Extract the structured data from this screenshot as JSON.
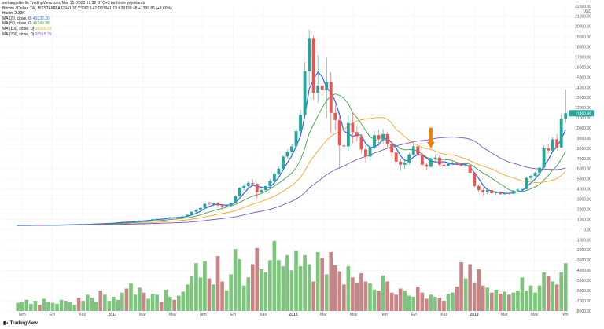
{
  "header": {
    "snapshot": "serkanguliterlin TradingView.com, Mar 15, 2022 17:32 UTC+3 tarihinde yayınlandı",
    "symbol_line": "Bitcoin / Dollar, 1W, BITSTAMP  A37941.37  Y39913.42  D37941.19  K39130.48  +1399.86 (+3.60%)",
    "hacim": "Hacim  2.33K",
    "ma_lines": [
      {
        "label": "MA (20, close, 0)",
        "value": "40332.20",
        "color": "#2962ff"
      },
      {
        "label": "MA (50, close, 0)",
        "value": "46149.88",
        "color": "#43a047"
      },
      {
        "label": "MA (100, close, 0)",
        "value": "35965.51",
        "color": "#f5a623"
      },
      {
        "label": "MA (200, close, 0)",
        "value": "20515.35",
        "color": "#7e57c2"
      }
    ]
  },
  "colors": {
    "up": "#26a69a",
    "down": "#ef5350",
    "up_vol": "#7dc47d",
    "down_vol": "#c98585",
    "arrow": "#f57c00",
    "price_tag": "#26a69a"
  },
  "price_axis": {
    "currency": "USD",
    "top_label": "22000.00",
    "ticks": [
      "21000.00",
      "20000.00",
      "19000.00",
      "18000.00",
      "17000.00",
      "16000.00",
      "15000.00",
      "14000.00",
      "13000.00",
      "12000.00",
      "11000.00",
      "10000.00",
      "9000.00",
      "8000.00",
      "7000.00",
      "6000.00",
      "5000.00",
      "4000.00",
      "3000.00",
      "2000.00",
      "1000.00",
      "0.00",
      "-1000.00",
      "-2000.00",
      "-3000.00",
      "-4000.00",
      "-5000.00",
      "-6000.00",
      "-7000.00",
      "-8000.00"
    ],
    "current_price": "11460.96"
  },
  "time_axis": [
    "Tem",
    "Eyl",
    "Kas",
    "2017",
    "Mar",
    "May",
    "Tem",
    "Eyl",
    "Kas",
    "2018",
    "Mar",
    "May",
    "Tem",
    "Eyl",
    "Kas",
    "2019",
    "Mar",
    "May",
    "Tem"
  ],
  "watermark": "TradingView",
  "chart_data": {
    "type": "candlestick",
    "interval": "1W",
    "ylabel": "USD",
    "ylim": [
      -8000,
      22000
    ],
    "candles": [
      [
        420,
        430,
        410,
        425
      ],
      [
        425,
        435,
        415,
        428
      ],
      [
        428,
        440,
        420,
        432
      ],
      [
        432,
        445,
        425,
        438
      ],
      [
        438,
        450,
        430,
        445
      ],
      [
        445,
        455,
        435,
        440
      ],
      [
        440,
        450,
        430,
        445
      ],
      [
        445,
        460,
        440,
        455
      ],
      [
        455,
        470,
        450,
        465
      ],
      [
        465,
        480,
        460,
        470
      ],
      [
        470,
        490,
        465,
        480
      ],
      [
        480,
        500,
        470,
        495
      ],
      [
        495,
        520,
        490,
        510
      ],
      [
        510,
        530,
        500,
        520
      ],
      [
        520,
        540,
        510,
        515
      ],
      [
        515,
        530,
        505,
        525
      ],
      [
        525,
        560,
        520,
        550
      ],
      [
        550,
        590,
        545,
        580
      ],
      [
        580,
        620,
        575,
        610
      ],
      [
        610,
        640,
        600,
        600
      ],
      [
        600,
        630,
        590,
        620
      ],
      [
        620,
        660,
        610,
        650
      ],
      [
        650,
        700,
        640,
        690
      ],
      [
        690,
        740,
        680,
        730
      ],
      [
        730,
        780,
        720,
        770
      ],
      [
        770,
        800,
        740,
        760
      ],
      [
        760,
        820,
        750,
        800
      ],
      [
        800,
        860,
        790,
        850
      ],
      [
        850,
        920,
        840,
        910
      ],
      [
        910,
        960,
        880,
        900
      ],
      [
        900,
        980,
        890,
        970
      ],
      [
        970,
        1050,
        950,
        1030
      ],
      [
        1030,
        1100,
        1000,
        1080
      ],
      [
        1080,
        1150,
        1040,
        1060
      ],
      [
        1060,
        1200,
        1050,
        1180
      ],
      [
        1180,
        1250,
        1150,
        1230
      ],
      [
        1230,
        1280,
        1180,
        1200
      ],
      [
        1200,
        1300,
        1190,
        1270
      ],
      [
        1270,
        1350,
        1250,
        1310
      ],
      [
        1310,
        1500,
        1300,
        1480
      ],
      [
        1480,
        1800,
        1460,
        1760
      ],
      [
        1760,
        2000,
        1650,
        1900
      ],
      [
        1900,
        2200,
        1850,
        2150
      ],
      [
        2150,
        2600,
        2100,
        2550
      ],
      [
        2550,
        2800,
        2400,
        2500
      ],
      [
        2500,
        2700,
        2300,
        2600
      ],
      [
        2600,
        2750,
        2150,
        2400
      ],
      [
        2400,
        2550,
        2050,
        2300
      ],
      [
        2300,
        2500,
        2200,
        2400
      ],
      [
        2400,
        2700,
        2350,
        2650
      ],
      [
        2650,
        3400,
        2600,
        3300
      ],
      [
        3300,
        4200,
        3200,
        4100
      ],
      [
        4100,
        4500,
        3900,
        4300
      ],
      [
        4300,
        4800,
        4200,
        4600
      ],
      [
        4600,
        4950,
        4300,
        4500
      ],
      [
        4500,
        4600,
        3000,
        3700
      ],
      [
        3700,
        4000,
        3600,
        3900
      ],
      [
        3900,
        4400,
        3800,
        4300
      ],
      [
        4300,
        5000,
        4200,
        4800
      ],
      [
        4800,
        5700,
        4700,
        5500
      ],
      [
        5500,
        6200,
        5400,
        6000
      ],
      [
        6000,
        7400,
        5900,
        7200
      ],
      [
        7200,
        7900,
        7000,
        7700
      ],
      [
        7700,
        8400,
        7200,
        8200
      ],
      [
        8200,
        9900,
        8000,
        9700
      ],
      [
        9700,
        11800,
        9500,
        11300
      ],
      [
        11300,
        16500,
        10900,
        15600
      ],
      [
        15600,
        19700,
        14200,
        18800
      ],
      [
        18800,
        19100,
        12800,
        13500
      ],
      [
        13500,
        17200,
        12500,
        14200
      ],
      [
        14200,
        15000,
        13200,
        13800
      ],
      [
        13800,
        17000,
        11000,
        14500
      ],
      [
        14500,
        15500,
        9500,
        11500
      ],
      [
        11500,
        12300,
        9800,
        10800
      ],
      [
        10800,
        11500,
        6000,
        8300
      ],
      [
        8300,
        9500,
        7800,
        8200
      ],
      [
        8200,
        11300,
        7800,
        10500
      ],
      [
        10500,
        11500,
        8500,
        9600
      ],
      [
        9600,
        10200,
        8700,
        9200
      ],
      [
        9200,
        9400,
        7500,
        7900
      ],
      [
        7900,
        8300,
        6600,
        7200
      ],
      [
        7200,
        8400,
        6800,
        8100
      ],
      [
        8100,
        9700,
        7900,
        9300
      ],
      [
        9300,
        9800,
        8200,
        8900
      ],
      [
        8900,
        9900,
        8500,
        9400
      ],
      [
        9400,
        9600,
        8000,
        8400
      ],
      [
        8400,
        8700,
        7200,
        7600
      ],
      [
        7600,
        7800,
        6500,
        6700
      ],
      [
        6700,
        7000,
        5800,
        6400
      ],
      [
        6400,
        6800,
        6000,
        6600
      ],
      [
        6600,
        7600,
        6400,
        7400
      ],
      [
        7400,
        8500,
        7300,
        8200
      ],
      [
        8200,
        8400,
        7100,
        7400
      ],
      [
        7400,
        7600,
        6200,
        6400
      ],
      [
        6400,
        6600,
        5900,
        6200
      ],
      [
        6200,
        7100,
        6100,
        7000
      ],
      [
        7000,
        7400,
        6600,
        7100
      ],
      [
        7100,
        7300,
        6200,
        6400
      ],
      [
        6400,
        6600,
        6100,
        6300
      ],
      [
        6300,
        6600,
        6200,
        6500
      ],
      [
        6500,
        6800,
        6400,
        6600
      ],
      [
        6600,
        6700,
        6300,
        6400
      ],
      [
        6400,
        6550,
        6200,
        6300
      ],
      [
        6300,
        6450,
        6150,
        6350
      ],
      [
        6350,
        6400,
        5700,
        5600
      ],
      [
        5600,
        5700,
        4100,
        4300
      ],
      [
        4300,
        4450,
        3700,
        3900
      ],
      [
        3900,
        4200,
        3300,
        3700
      ],
      [
        3700,
        4100,
        3500,
        3900
      ],
      [
        3900,
        4100,
        3500,
        3600
      ],
      [
        3600,
        3800,
        3400,
        3700
      ],
      [
        3700,
        3750,
        3450,
        3500
      ],
      [
        3500,
        3650,
        3400,
        3600
      ],
      [
        3600,
        3700,
        3450,
        3550
      ],
      [
        3550,
        3900,
        3500,
        3850
      ],
      [
        3850,
        4050,
        3800,
        3950
      ],
      [
        3950,
        4100,
        3850,
        4000
      ],
      [
        4000,
        5200,
        3950,
        5100
      ],
      [
        5100,
        5400,
        4900,
        5300
      ],
      [
        5300,
        5700,
        5200,
        5600
      ],
      [
        5600,
        6200,
        5500,
        6100
      ],
      [
        6100,
        8300,
        6000,
        8000
      ],
      [
        8000,
        8400,
        7500,
        7800
      ],
      [
        7800,
        9100,
        7700,
        8900
      ],
      [
        8900,
        9400,
        7800,
        8100
      ],
      [
        8100,
        11300,
        8000,
        10900
      ],
      [
        10900,
        13800,
        10500,
        11460
      ]
    ],
    "volume": [
      -7200,
      -7100,
      -6900,
      -7300,
      -7000,
      -7400,
      -6800,
      -7100,
      -7200,
      -7300,
      -6900,
      -7000,
      -7100,
      -7400,
      -6700,
      -7000,
      -6400,
      -6700,
      -7100,
      -6000,
      -6400,
      -7000,
      -6600,
      -6900,
      -6200,
      -5800,
      -5300,
      -6400,
      -5700,
      -6200,
      -6800,
      -6300,
      -6400,
      -7100,
      -5900,
      -6600,
      -6900,
      -6500,
      -6100,
      -5400,
      -4600,
      -3300,
      -4700,
      -3100,
      -4800,
      -5400,
      -2600,
      -5100,
      -6000,
      -4400,
      -1900,
      -2900,
      -5500,
      -4700,
      -3400,
      -1800,
      -3900,
      -4200,
      -3000,
      -1100,
      -3000,
      -3600,
      -2500,
      -4000,
      -2100,
      -3600,
      -2500,
      -3400,
      -5100,
      -2200,
      -2800,
      -4400,
      -2200,
      -3500,
      -4100,
      -5400,
      -3600,
      -4700,
      -5200,
      -4300,
      -5100,
      -5300,
      -5900,
      -6000,
      -4500,
      -5100,
      -6200,
      -6400,
      -5800,
      -6000,
      -6500,
      -6600,
      -5600,
      -6200,
      -6800,
      -6400,
      -6600,
      -6700,
      -7000,
      -6300,
      -6200,
      -5600,
      -3200,
      -4800,
      -3400,
      -5200,
      -3900,
      -5500,
      -5700,
      -6200,
      -5900,
      -6300,
      -6100,
      -6400,
      -6200,
      -6000,
      -4700,
      -6000,
      -5500,
      -6200,
      -5500,
      -4200,
      -4600,
      -5100,
      -5400,
      -4200,
      -3300
    ],
    "moving_averages": [
      {
        "name": "MA 20",
        "color": "#2962ff"
      },
      {
        "name": "MA 50",
        "color": "#43a047"
      },
      {
        "name": "MA 100",
        "color": "#f5a623"
      },
      {
        "name": "MA 200",
        "color": "#7e57c2"
      }
    ],
    "annotation": {
      "type": "down-arrow",
      "candle_index": 95
    }
  }
}
